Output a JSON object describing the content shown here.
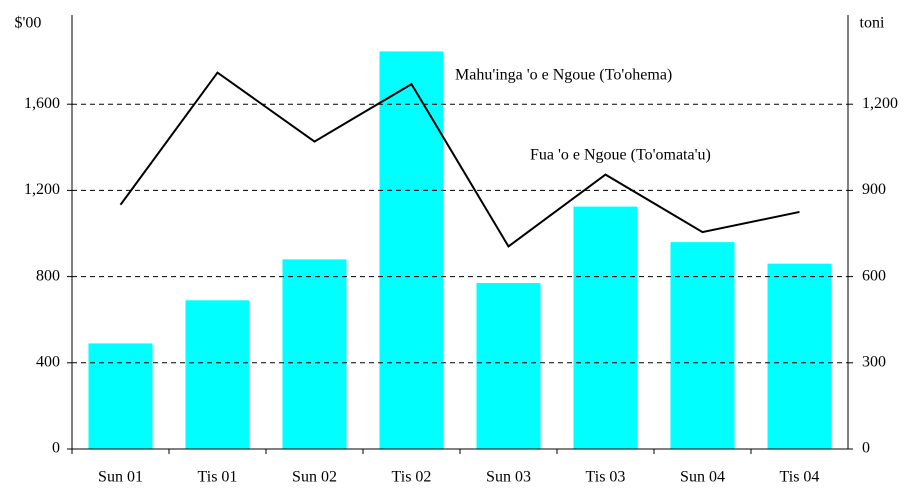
{
  "chart_data": {
    "type": "bar_line",
    "y_label": "$'00",
    "y2_label": "toni",
    "categories": [
      "Sun 01",
      "Tis 01",
      "Sun 02",
      "Tis 02",
      "Sun 03",
      "Tis 03",
      "Sun 04",
      "Tis 04"
    ],
    "series": [
      {
        "name": "Mahu'inga 'o e Ngoue (To'ohema)",
        "type": "bar",
        "color": "#00ffff",
        "values": [
          490,
          690,
          880,
          1845,
          770,
          1125,
          960,
          860
        ]
      },
      {
        "name": "Fua 'o e Ngoue (To'omata'u)",
        "type": "line",
        "axis": "y2",
        "color": "#000000",
        "values": [
          850,
          1310,
          1070,
          1270,
          705,
          955,
          755,
          825
        ]
      }
    ],
    "ylim": [
      0,
      2000
    ],
    "yticks": [
      0,
      400,
      800,
      {
        "value": 1200,
        "label": "1,200"
      },
      {
        "value": 1600,
        "label": "1,600"
      }
    ],
    "y2lim": [
      0,
      1500
    ],
    "y2ticks": [
      0,
      300,
      600,
      900,
      {
        "value": 1200,
        "label": "1,200"
      }
    ],
    "grid": true
  }
}
